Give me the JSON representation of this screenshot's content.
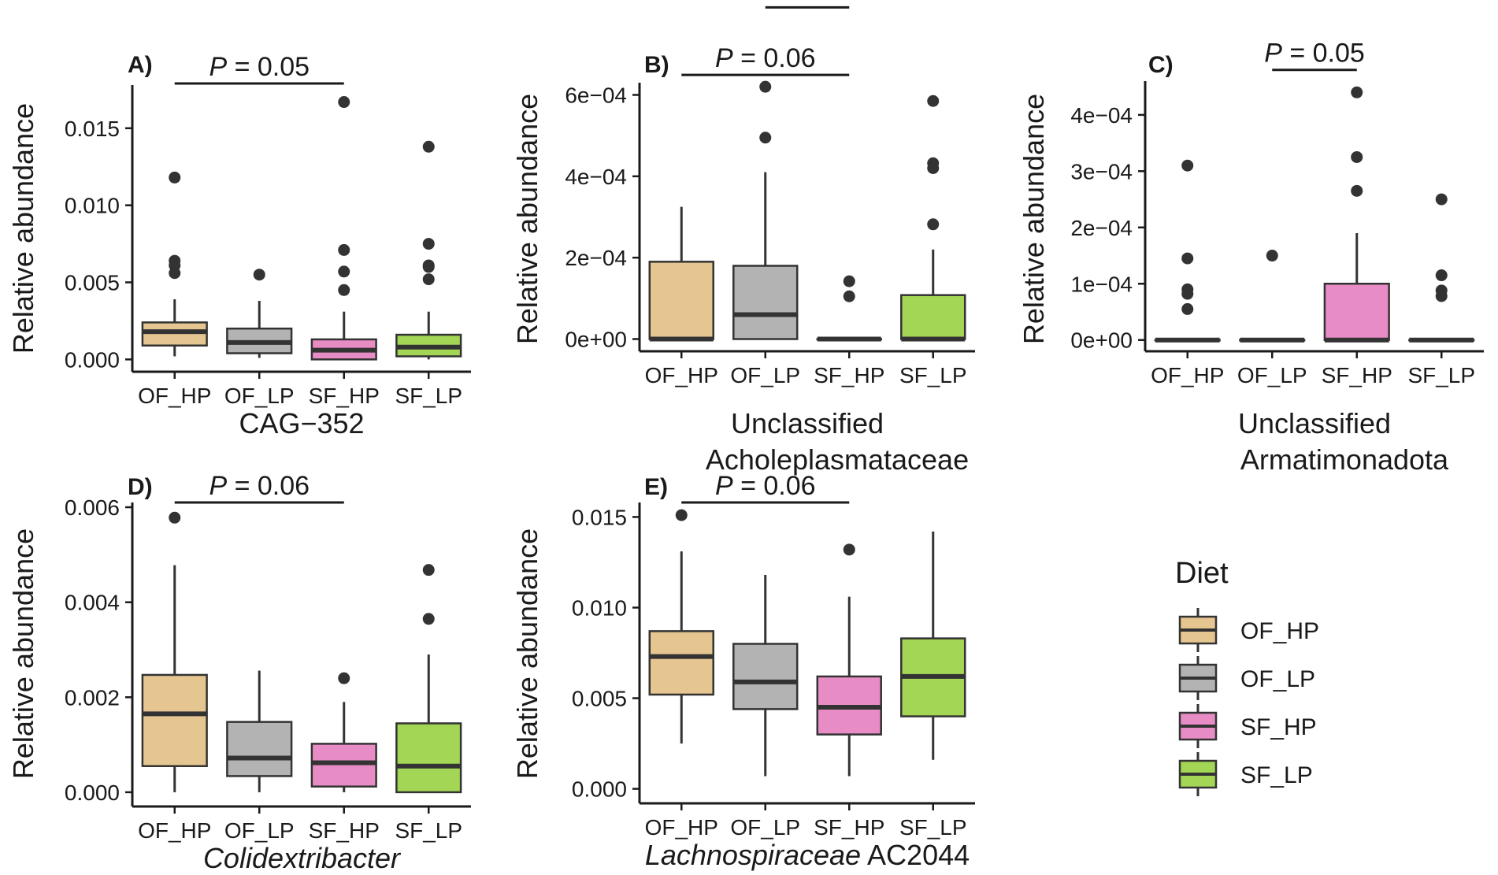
{
  "figure_title": "",
  "legend": {
    "title": "Diet",
    "items": [
      {
        "label": "OF_HP",
        "color": "#E6C690"
      },
      {
        "label": "OF_LP",
        "color": "#B3B3B3"
      },
      {
        "label": "SF_HP",
        "color": "#E88CC6"
      },
      {
        "label": "SF_LP",
        "color": "#A3D655"
      }
    ]
  },
  "chart_data": [
    {
      "type": "boxplot",
      "panel": "A)",
      "title": "",
      "ylabel": "Relative abundance",
      "xlabel_lines": [
        "CAG−352"
      ],
      "xlabel_italic": [],
      "categories": [
        "OF_HP",
        "OF_LP",
        "SF_HP",
        "SF_LP"
      ],
      "ylim": [
        -0.0008,
        0.0178
      ],
      "yticks": [
        0,
        0.005,
        0.01,
        0.015
      ],
      "ytick_labels": [
        "0.000",
        "0.005",
        "0.010",
        "0.015"
      ],
      "boxes": [
        {
          "q1": 0.0009,
          "median": 0.0018,
          "q3": 0.0024,
          "whisker_low": 0.0002,
          "whisker_high": 0.0039,
          "outliers": [
            0.0118,
            0.0064,
            0.0061,
            0.0056
          ]
        },
        {
          "q1": 0.0004,
          "median": 0.0011,
          "q3": 0.002,
          "whisker_low": 0.0001,
          "whisker_high": 0.0038,
          "outliers": [
            0.0055
          ]
        },
        {
          "q1": 0.0,
          "median": 0.0006,
          "q3": 0.0013,
          "whisker_low": 0.0,
          "whisker_high": 0.0031,
          "outliers": [
            0.0167,
            0.0071,
            0.0057,
            0.0045
          ]
        },
        {
          "q1": 0.0002,
          "median": 0.0008,
          "q3": 0.0016,
          "whisker_low": 0.0,
          "whisker_high": 0.0031,
          "outliers": [
            0.0138,
            0.0075,
            0.0061,
            0.006,
            0.0052
          ]
        }
      ],
      "significance": [
        {
          "from": 1,
          "to": 3,
          "y": 0.0179,
          "label": "P = 0.05"
        }
      ]
    },
    {
      "type": "boxplot",
      "panel": "B)",
      "title": "",
      "ylabel": "Relative abundance",
      "xlabel_lines": [
        "Unclassified",
        "Acholeplasmataceae"
      ],
      "xlabel_italic": [],
      "categories": [
        "OF_HP",
        "OF_LP",
        "SF_HP",
        "SF_LP"
      ],
      "ylim": [
        -3e-05,
        0.00063
      ],
      "yticks": [
        0,
        0.0002,
        0.0004,
        0.0006
      ],
      "ytick_labels": [
        "0e+00",
        "2e−04",
        "4e−04",
        "6e−04"
      ],
      "boxes": [
        {
          "q1": 0.0,
          "median": 0.0,
          "q3": 0.00019,
          "whisker_low": 0.0,
          "whisker_high": 0.000325,
          "outliers": []
        },
        {
          "q1": 0.0,
          "median": 6e-05,
          "q3": 0.00018,
          "whisker_low": 0.0,
          "whisker_high": 0.00041,
          "outliers": [
            0.00062,
            0.000495
          ]
        },
        {
          "q1": 0.0,
          "median": 0.0,
          "q3": 0.0,
          "whisker_low": 0.0,
          "whisker_high": 0.0,
          "outliers": [
            0.000142,
            0.000105
          ]
        },
        {
          "q1": 0.0,
          "median": 0.0,
          "q3": 0.000108,
          "whisker_low": 0.0,
          "whisker_high": 0.00022,
          "outliers": [
            0.000585,
            0.000432,
            0.00042,
            0.000282
          ]
        }
      ],
      "significance": [
        {
          "from": 1,
          "to": 3,
          "y": 0.000649,
          "label": "P = 0.06"
        },
        {
          "from": 2,
          "to": 3,
          "y": 0.000815,
          "label": "P = 0.04"
        }
      ]
    },
    {
      "type": "boxplot",
      "panel": "C)",
      "title": "",
      "ylabel": "Relative abundance",
      "xlabel_lines": [
        "Unclassified",
        "Armatimonadota"
      ],
      "xlabel_italic": [],
      "categories": [
        "OF_HP",
        "OF_LP",
        "SF_HP",
        "SF_LP"
      ],
      "ylim": [
        -2e-05,
        0.00046
      ],
      "yticks": [
        0,
        0.0001,
        0.0002,
        0.0003,
        0.0004
      ],
      "ytick_labels": [
        "0e+00",
        "1e−04",
        "2e−04",
        "3e−04",
        "4e−04"
      ],
      "boxes": [
        {
          "q1": 0.0,
          "median": 0.0,
          "q3": 0.0,
          "whisker_low": 0.0,
          "whisker_high": 0.0,
          "outliers": [
            0.00031,
            0.000145,
            9e-05,
            8.2e-05,
            5.5e-05
          ]
        },
        {
          "q1": 0.0,
          "median": 0.0,
          "q3": 0.0,
          "whisker_low": 0.0,
          "whisker_high": 0.0,
          "outliers": [
            0.00015
          ]
        },
        {
          "q1": 0.0,
          "median": 0.0,
          "q3": 0.0001,
          "whisker_low": 0.0,
          "whisker_high": 0.00019,
          "outliers": [
            0.00044,
            0.000325,
            0.000265
          ]
        },
        {
          "q1": 0.0,
          "median": 0.0,
          "q3": 0.0,
          "whisker_low": 0.0,
          "whisker_high": 0.0,
          "outliers": [
            0.00025,
            0.000115,
            8.8e-05,
            7.8e-05
          ]
        }
      ],
      "significance": [
        {
          "from": 2,
          "to": 3,
          "y": 0.00048,
          "label": "P = 0.05"
        }
      ]
    },
    {
      "type": "boxplot",
      "panel": "D)",
      "title": "",
      "ylabel": "Relative abundance",
      "xlabel_lines": [
        "Colidextribacter"
      ],
      "xlabel_italic": [
        "Colidextribacter"
      ],
      "categories": [
        "OF_HP",
        "OF_LP",
        "SF_HP",
        "SF_LP"
      ],
      "ylim": [
        -0.0003,
        0.0061
      ],
      "yticks": [
        0,
        0.002,
        0.004,
        0.006
      ],
      "ytick_labels": [
        "0.000",
        "0.002",
        "0.004",
        "0.006"
      ],
      "boxes": [
        {
          "q1": 0.00055,
          "median": 0.00165,
          "q3": 0.00247,
          "whisker_low": 0.0,
          "whisker_high": 0.00478,
          "outliers": [
            0.00578
          ]
        },
        {
          "q1": 0.00034,
          "median": 0.00072,
          "q3": 0.00148,
          "whisker_low": 0.0,
          "whisker_high": 0.00256,
          "outliers": []
        },
        {
          "q1": 0.00012,
          "median": 0.00062,
          "q3": 0.00102,
          "whisker_low": 0.0,
          "whisker_high": 0.0019,
          "outliers": [
            0.0024
          ]
        },
        {
          "q1": 0.0,
          "median": 0.00055,
          "q3": 0.00145,
          "whisker_low": 0.0,
          "whisker_high": 0.0029,
          "outliers": [
            0.00468,
            0.00365
          ]
        }
      ],
      "significance": [
        {
          "from": 1,
          "to": 3,
          "y": 0.0061,
          "label": "P = 0.06"
        }
      ]
    },
    {
      "type": "boxplot",
      "panel": "E)",
      "title": "",
      "ylabel": "Relative abundance",
      "xlabel_lines": [
        "Lachnospiraceae AC2044"
      ],
      "xlabel_italic": [
        "Lachnospiraceae"
      ],
      "categories": [
        "OF_HP",
        "OF_LP",
        "SF_HP",
        "SF_LP"
      ],
      "ylim": [
        -0.0008,
        0.0158
      ],
      "yticks": [
        0,
        0.005,
        0.01,
        0.015
      ],
      "ytick_labels": [
        "0.000",
        "0.005",
        "0.010",
        "0.015"
      ],
      "boxes": [
        {
          "q1": 0.0052,
          "median": 0.0073,
          "q3": 0.0087,
          "whisker_low": 0.0025,
          "whisker_high": 0.0131,
          "outliers": [
            0.0151
          ]
        },
        {
          "q1": 0.0044,
          "median": 0.0059,
          "q3": 0.008,
          "whisker_low": 0.0007,
          "whisker_high": 0.0118,
          "outliers": []
        },
        {
          "q1": 0.003,
          "median": 0.0045,
          "q3": 0.0062,
          "whisker_low": 0.0007,
          "whisker_high": 0.0106,
          "outliers": [
            0.0132
          ]
        },
        {
          "q1": 0.004,
          "median": 0.0062,
          "q3": 0.0083,
          "whisker_low": 0.0016,
          "whisker_high": 0.0142,
          "outliers": []
        }
      ],
      "significance": [
        {
          "from": 1,
          "to": 3,
          "y": 0.0158,
          "label": "P = 0.06"
        }
      ]
    }
  ]
}
